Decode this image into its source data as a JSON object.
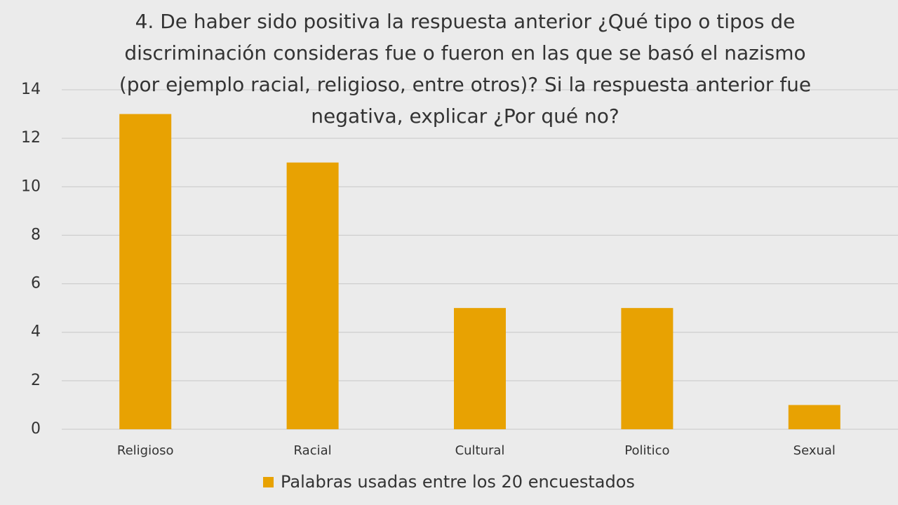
{
  "chart_data": {
    "type": "bar",
    "title": "4. De haber sido positiva la respuesta anterior ¿Qué tipo o tipos de discriminación consideras fue o fueron en las que se basó el nazismo (por ejemplo racial, religioso, entre otros)? Si la respuesta anterior fue negativa, explicar ¿Por qué no?",
    "categories": [
      "Religioso",
      "Racial",
      "Cultural",
      "Politico",
      "Sexual"
    ],
    "series": [
      {
        "name": "Palabras usadas entre los 20 encuestados",
        "color": "#e8a202",
        "values": [
          13,
          11,
          5,
          5,
          1
        ]
      }
    ],
    "ylim": [
      0,
      14
    ],
    "yticks": [
      0,
      2,
      4,
      6,
      8,
      10,
      12,
      14
    ],
    "grid": true,
    "legend": "bottom"
  }
}
